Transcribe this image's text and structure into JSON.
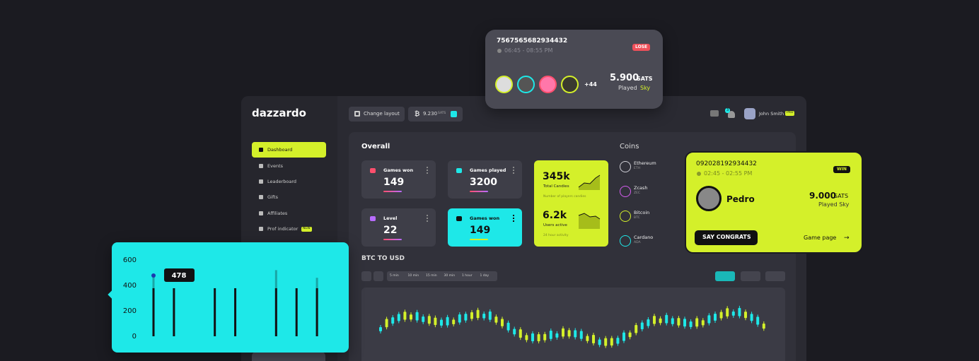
{
  "brand": "dazzardo",
  "topbar": {
    "change_layout": "Change layout",
    "balance": "9.230",
    "balance_unit": "SATS",
    "notifications": "3",
    "user": "John Smith",
    "badge": "PRO"
  },
  "sidebar": [
    {
      "label": "Dashboard"
    },
    {
      "label": "Events"
    },
    {
      "label": "Leaderboard"
    },
    {
      "label": "Gifts"
    },
    {
      "label": "Affiliates"
    },
    {
      "label": "Prof indicator",
      "badge": "NEW"
    }
  ],
  "overall": {
    "title": "Overall",
    "cards": [
      {
        "label": "Games won",
        "value": 149
      },
      {
        "label": "Games played",
        "value": 3200
      },
      {
        "label": "Level",
        "value": 22
      },
      {
        "label": "Games won",
        "value": 149
      }
    ]
  },
  "stats": [
    {
      "value": "345k",
      "label": "Total Candies",
      "note": "Number of players candies"
    },
    {
      "value": "6.2k",
      "label": "Users active",
      "note": "24 hour activity"
    }
  ],
  "coins": {
    "title": "Coins",
    "items": [
      {
        "name": "Ethereum",
        "symbol": "ETH"
      },
      {
        "name": "Zcash",
        "symbol": "ZEC"
      },
      {
        "name": "Bitcoin",
        "symbol": "BTC"
      },
      {
        "name": "Cardano",
        "symbol": "ADA"
      }
    ]
  },
  "btc": {
    "title": "BTC TO USD",
    "intervals": [
      "5 min",
      "10 min",
      "15 min",
      "30 min",
      "1 hour",
      "1 day"
    ]
  },
  "lose_card": {
    "id": "7567565682934432",
    "time": "06:45 - 08:55 PM",
    "result": "LOSE",
    "more": "+44",
    "amount": "5.900",
    "unit": "SATS",
    "played": "Played",
    "game": "Sky"
  },
  "win_card": {
    "id": "092028192934432",
    "time": "02:45 - 02:55 PM",
    "result": "WIN",
    "player": "Pedro",
    "amount": "9.000",
    "unit": "SATS",
    "played": "Played Sky",
    "button": "SAY CONGRATS",
    "link": "Game page"
  },
  "chart_data": {
    "type": "bar",
    "categories": [
      null,
      null,
      null,
      null,
      null,
      null,
      null,
      null,
      null
    ],
    "series": [
      {
        "color": "#19a6a6",
        "values": [
          478,
          null,
          null,
          null,
          null,
          null,
          520,
          null,
          460
        ]
      },
      {
        "color": "#121214",
        "values": [
          378,
          378,
          null,
          378,
          378,
          null,
          378,
          378,
          378
        ]
      }
    ],
    "ylim": [
      0,
      600
    ],
    "yticks": [
      0,
      200,
      400,
      600
    ]
  }
}
